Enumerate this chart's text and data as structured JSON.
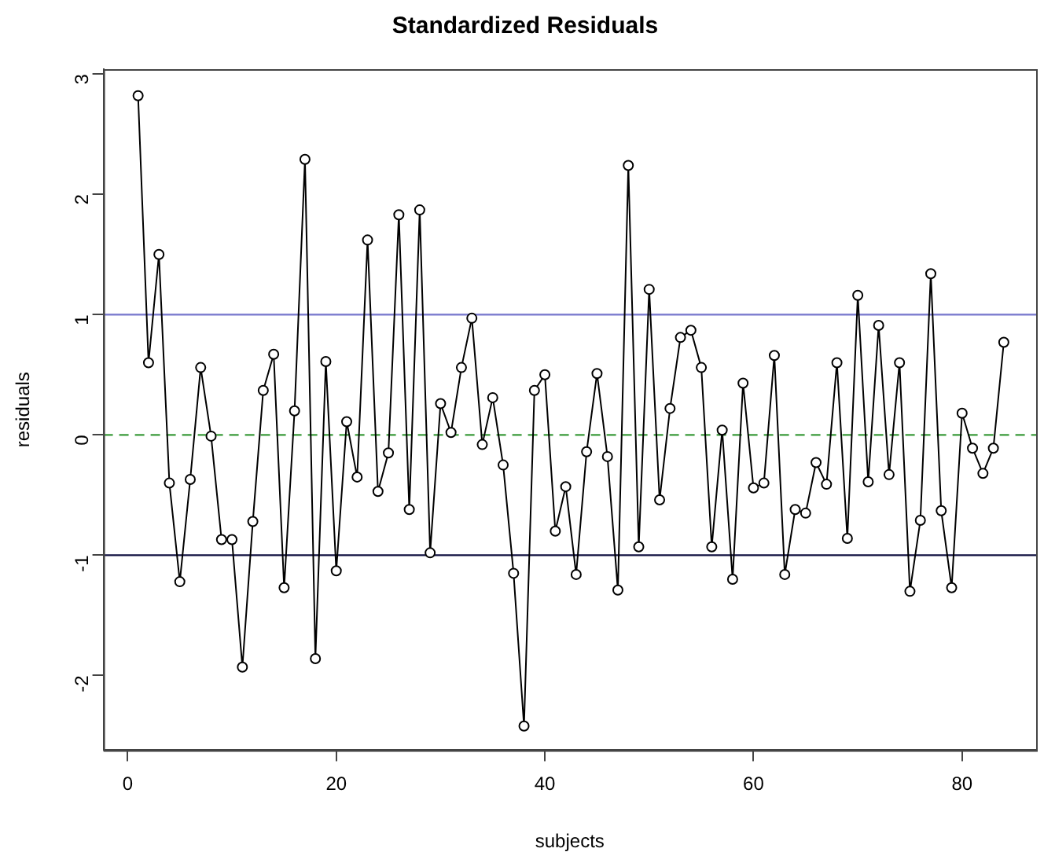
{
  "chart_data": {
    "type": "line",
    "title": "Standardized Residuals",
    "xlabel": "subjects",
    "ylabel": "residuals",
    "x": [
      1,
      2,
      3,
      4,
      5,
      6,
      7,
      8,
      9,
      10,
      11,
      12,
      13,
      14,
      15,
      16,
      17,
      18,
      19,
      20,
      21,
      22,
      23,
      24,
      25,
      26,
      27,
      28,
      29,
      30,
      31,
      32,
      33,
      34,
      35,
      36,
      37,
      38,
      39,
      40,
      41,
      42,
      43,
      44,
      45,
      46,
      47,
      48,
      49,
      50,
      51,
      52,
      53,
      54,
      55,
      56,
      57,
      58,
      59,
      60,
      61,
      62,
      63,
      64,
      65,
      66,
      67,
      68,
      69,
      70,
      71,
      72,
      73,
      74,
      75,
      76,
      77,
      78,
      79,
      80,
      81,
      82,
      83,
      84
    ],
    "series": [
      {
        "color": "#000000",
        "values": [
          2.82,
          0.6,
          1.5,
          -0.4,
          -1.22,
          -0.37,
          0.56,
          -0.01,
          -0.87,
          -0.87,
          -1.93,
          -0.72,
          0.37,
          0.67,
          -1.27,
          0.2,
          2.29,
          -1.86,
          0.61,
          -1.13,
          0.11,
          -0.35,
          1.62,
          -0.47,
          -0.15,
          1.83,
          -0.62,
          1.87,
          -0.98,
          0.26,
          0.02,
          0.56,
          0.97,
          -0.08,
          0.31,
          -0.25,
          -1.15,
          -2.42,
          0.37,
          0.5,
          -0.8,
          -0.43,
          -1.16,
          -0.14,
          0.51,
          -0.18,
          -1.29,
          2.24,
          -0.93,
          1.21,
          -0.54,
          0.22,
          0.81,
          0.87,
          0.56,
          -0.93,
          0.04,
          -1.2,
          0.43,
          -0.44,
          -0.4,
          0.66,
          -1.16,
          -0.62,
          -0.65,
          -0.23,
          -0.41,
          0.6,
          -0.86,
          1.16,
          -0.39,
          0.91,
          -0.33,
          0.6,
          -1.3,
          -0.71,
          1.34,
          -0.63,
          -1.27,
          0.18,
          -0.11,
          -0.32,
          -0.11,
          0.77
        ]
      }
    ],
    "xlim": [
      -2.32,
      87.1
    ],
    "ylim": [
      -2.62,
      3.04
    ],
    "xticks": [
      0,
      20,
      40,
      60,
      80
    ],
    "yticks": [
      -2,
      -1,
      0,
      1,
      2,
      3
    ],
    "ref_lines": [
      {
        "axis": "y",
        "value": 1,
        "color": "#8080d0",
        "line_style": "solid"
      },
      {
        "axis": "y",
        "value": 0,
        "color": "#3a9a3a",
        "line_style": "dashed"
      },
      {
        "axis": "y",
        "value": -1,
        "color": "#101040",
        "line_style": "solid"
      }
    ],
    "grid": false,
    "legend": false,
    "marker": "circle",
    "line_style": "solid"
  }
}
